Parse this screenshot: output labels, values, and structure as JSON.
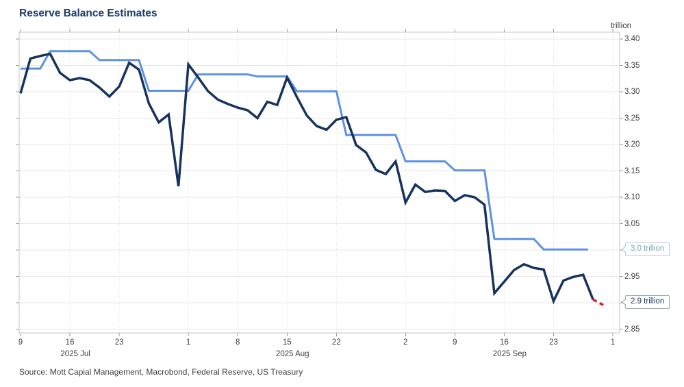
{
  "header": {
    "title": "Reserve Balance Estimates"
  },
  "footer": {
    "source": "Source: Mott Capial Management, Macrobond, Federal Reserve, US Treasury"
  },
  "chart_data": {
    "type": "line",
    "title": "Reserve Balance Estimates",
    "y_axis": {
      "side": "right",
      "unit_label": "trillion",
      "min": 2.85,
      "max": 3.4,
      "tick_step": 0.05,
      "ticks": [
        {
          "label": "3.40",
          "v": 3.4
        },
        {
          "label": "3.35",
          "v": 3.35
        },
        {
          "label": "3.30",
          "v": 3.3
        },
        {
          "label": "3.25",
          "v": 3.25
        },
        {
          "label": "3.20",
          "v": 3.2
        },
        {
          "label": "3.15",
          "v": 3.15
        },
        {
          "label": "3.10",
          "v": 3.1
        },
        {
          "label": "3.05",
          "v": 3.05
        },
        {
          "label": "3.00",
          "v": 3.0,
          "label_hidden_by_callout": true
        },
        {
          "label": "2.95",
          "v": 2.95
        },
        {
          "label": "2.90",
          "v": 2.9,
          "label_hidden_by_callout": true
        },
        {
          "label": "2.85",
          "v": 2.85
        }
      ]
    },
    "x_axis": {
      "note": "i = weekday index starting at Jul 9 2025 (weekends skipped); 60 = Oct 1 2025",
      "ticks": [
        {
          "label": "9",
          "i": 0
        },
        {
          "label": "16",
          "i": 5
        },
        {
          "label": "23",
          "i": 10
        },
        {
          "label": "1",
          "i": 17
        },
        {
          "label": "8",
          "i": 22
        },
        {
          "label": "15",
          "i": 27
        },
        {
          "label": "22",
          "i": 32
        },
        {
          "label": "2",
          "i": 39
        },
        {
          "label": "9",
          "i": 44
        },
        {
          "label": "16",
          "i": 49
        },
        {
          "label": "23",
          "i": 54
        },
        {
          "label": "1",
          "i": 60
        }
      ],
      "month_labels": [
        {
          "label": "2025 Jul",
          "i": 5
        },
        {
          "label": "2025 Aug",
          "i": 27
        },
        {
          "label": "2025 Sep",
          "i": 49
        }
      ]
    },
    "series": [
      {
        "name": "reserve-balances-weekly-estimate",
        "color": "#5e90e4",
        "width": 3,
        "style": "solid",
        "points": [
          [
            0,
            3.344
          ],
          [
            2,
            3.344
          ],
          [
            3,
            3.377
          ],
          [
            7,
            3.377
          ],
          [
            8,
            3.36
          ],
          [
            12,
            3.36
          ],
          [
            13,
            3.302
          ],
          [
            17,
            3.302
          ],
          [
            18,
            3.333
          ],
          [
            23,
            3.333
          ],
          [
            24,
            3.329
          ],
          [
            27,
            3.329
          ],
          [
            28,
            3.301
          ],
          [
            32,
            3.301
          ],
          [
            33,
            3.218
          ],
          [
            38,
            3.218
          ],
          [
            39,
            3.168
          ],
          [
            43,
            3.168
          ],
          [
            44,
            3.151
          ],
          [
            47,
            3.151
          ],
          [
            48,
            3.021
          ],
          [
            52,
            3.021
          ],
          [
            53,
            3.001
          ],
          [
            57.5,
            3.001
          ]
        ]
      },
      {
        "name": "reserve-balances-actual",
        "color": "#17335d",
        "width": 3.5,
        "style": "solid",
        "points": [
          [
            0,
            3.297
          ],
          [
            1,
            3.363
          ],
          [
            2,
            3.368
          ],
          [
            3,
            3.372
          ],
          [
            4,
            3.336
          ],
          [
            5,
            3.322
          ],
          [
            6,
            3.326
          ],
          [
            7,
            3.322
          ],
          [
            8,
            3.308
          ],
          [
            9,
            3.291
          ],
          [
            10,
            3.31
          ],
          [
            11,
            3.355
          ],
          [
            12,
            3.342
          ],
          [
            13,
            3.278
          ],
          [
            14,
            3.242
          ],
          [
            15,
            3.257
          ],
          [
            16,
            3.121
          ],
          [
            17,
            3.352
          ],
          [
            18,
            3.327
          ],
          [
            19,
            3.301
          ],
          [
            20,
            3.285
          ],
          [
            21,
            3.277
          ],
          [
            22,
            3.27
          ],
          [
            23,
            3.265
          ],
          [
            24,
            3.25
          ],
          [
            25,
            3.281
          ],
          [
            26,
            3.275
          ],
          [
            27,
            3.327
          ],
          [
            28,
            3.29
          ],
          [
            29,
            3.255
          ],
          [
            30,
            3.235
          ],
          [
            31,
            3.228
          ],
          [
            32,
            3.247
          ],
          [
            33,
            3.252
          ],
          [
            34,
            3.199
          ],
          [
            35,
            3.185
          ],
          [
            36,
            3.152
          ],
          [
            37,
            3.144
          ],
          [
            38,
            3.168
          ],
          [
            39,
            3.09
          ],
          [
            40,
            3.124
          ],
          [
            41,
            3.11
          ],
          [
            42,
            3.113
          ],
          [
            43,
            3.112
          ],
          [
            44,
            3.093
          ],
          [
            45,
            3.104
          ],
          [
            46,
            3.1
          ],
          [
            47,
            3.086
          ],
          [
            48,
            2.918
          ],
          [
            49,
            2.94
          ],
          [
            50,
            2.962
          ],
          [
            51,
            2.973
          ],
          [
            52,
            2.966
          ],
          [
            53,
            2.963
          ],
          [
            54,
            2.903
          ],
          [
            55,
            2.942
          ],
          [
            56,
            2.949
          ],
          [
            57,
            2.953
          ],
          [
            58,
            2.906
          ]
        ]
      },
      {
        "name": "projection-segment",
        "color": "#e02019",
        "width": 3.5,
        "style": "dashed",
        "points": [
          [
            58,
            2.906
          ],
          [
            59.3,
            2.893
          ]
        ]
      }
    ],
    "callouts": [
      {
        "label": "3.0 trillion",
        "value": 3.0,
        "text_color": "#7ba4a4",
        "border_color": "#b7cfcf"
      },
      {
        "label": "2.9 trillion",
        "value": 2.9,
        "text_color": "#253f63",
        "border_color": "#9aa7b7"
      }
    ],
    "colors": {
      "grid_horizontal": "#e7e7e7",
      "grid_vertical": "#dadada",
      "frame": "#c4c4c4",
      "tick_mark": "#9a9a9a",
      "tick_text": "#3f3f3f",
      "title": "#1f3a66"
    }
  }
}
